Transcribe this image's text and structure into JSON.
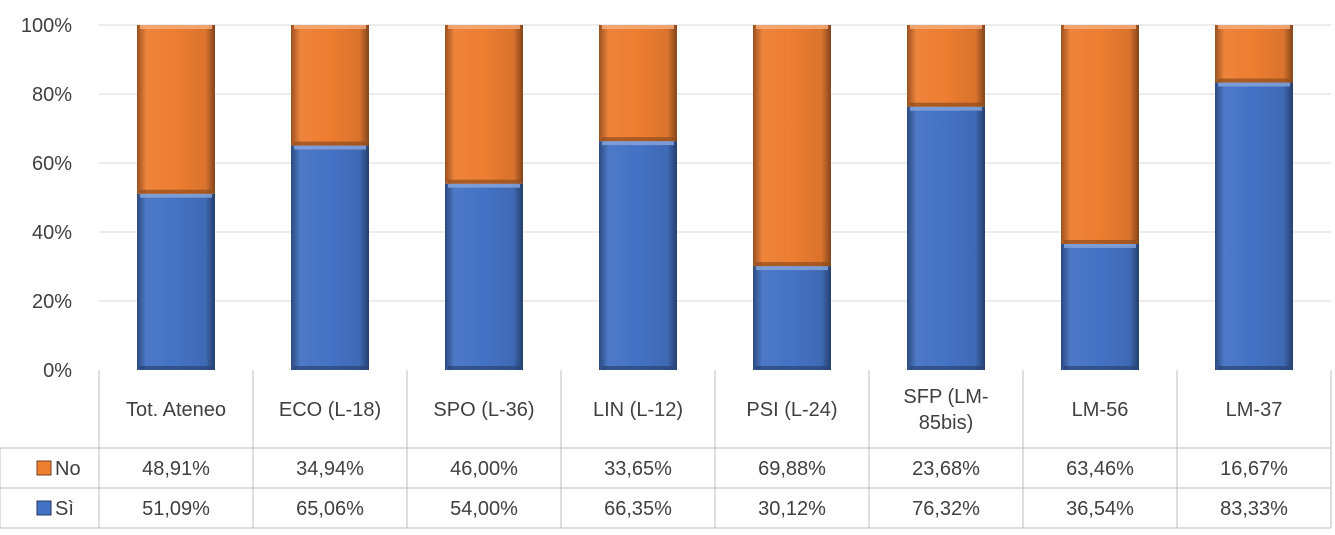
{
  "chart_data": {
    "type": "bar",
    "stacked": true,
    "percent_stacked": true,
    "categories": [
      "Tot. Ateneo",
      "ECO (L-18)",
      "SPO (L-36)",
      "LIN (L-12)",
      "PSI (L-24)",
      "SFP (LM-85bis)",
      "LM-56",
      "LM-37"
    ],
    "category_display_lines": [
      [
        "Tot. Ateneo"
      ],
      [
        "ECO (L-18)"
      ],
      [
        "SPO (L-36)"
      ],
      [
        "LIN (L-12)"
      ],
      [
        "PSI (L-24)"
      ],
      [
        "SFP (LM-",
        "85bis)"
      ],
      [
        "LM-56"
      ],
      [
        "LM-37"
      ]
    ],
    "series": [
      {
        "name": "Sì",
        "color": "#4472C4",
        "values": [
          51.09,
          65.06,
          54.0,
          66.35,
          30.12,
          76.32,
          36.54,
          83.33
        ],
        "labels": [
          "51,09%",
          "65,06%",
          "54,00%",
          "66,35%",
          "30,12%",
          "76,32%",
          "36,54%",
          "83,33%"
        ]
      },
      {
        "name": "No",
        "color": "#ED7D31",
        "values": [
          48.91,
          34.94,
          46.0,
          33.65,
          69.88,
          23.68,
          63.46,
          16.67
        ],
        "labels": [
          "48,91%",
          "34,94%",
          "46,00%",
          "33,65%",
          "69,88%",
          "23,68%",
          "63,46%",
          "16,67%"
        ]
      }
    ],
    "y_ticks": [
      "0%",
      "20%",
      "40%",
      "60%",
      "80%",
      "100%"
    ],
    "ylim": [
      0,
      100
    ],
    "grid": true,
    "data_table": true,
    "legend": "data-table-left"
  }
}
